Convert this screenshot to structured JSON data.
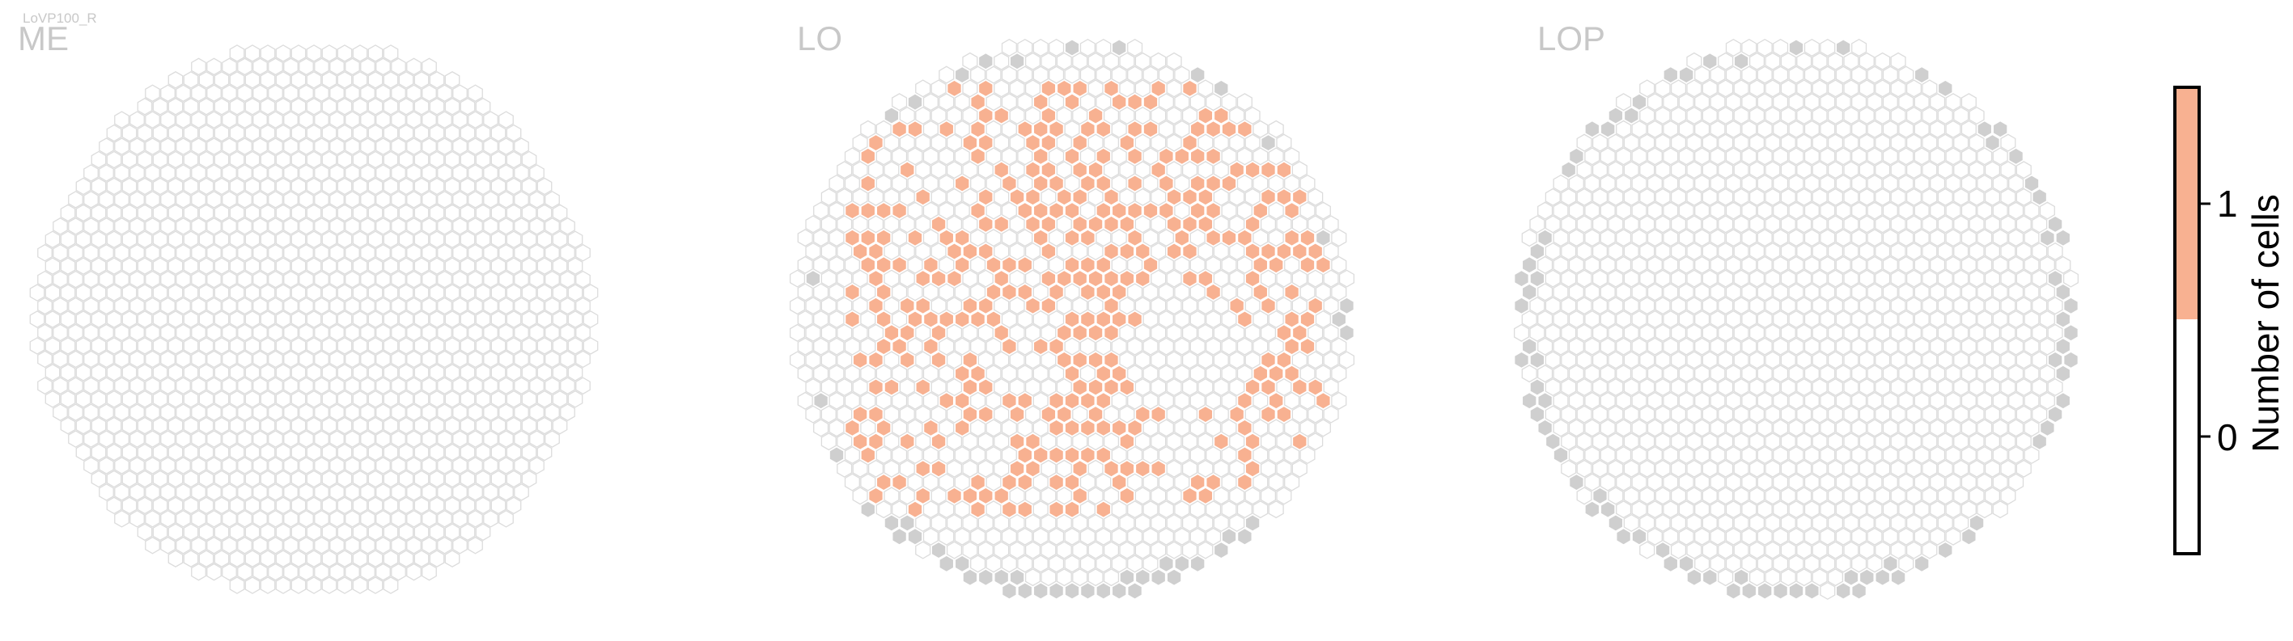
{
  "figure": {
    "id_label": "LoVP100_R"
  },
  "chart_data": [
    {
      "type": "heatmap",
      "subtype": "hexagonal-column-map",
      "title": "ME",
      "column_radius": 19,
      "columns_with_cells": 0,
      "has_gray_outside_columns": false
    },
    {
      "type": "heatmap",
      "subtype": "hexagonal-column-map",
      "title": "LO",
      "column_radius": 17,
      "columns_with_cells": 380,
      "innervated_fraction_estimate": 0.42,
      "has_gray_outside_columns": true
    },
    {
      "type": "heatmap",
      "subtype": "hexagonal-column-map",
      "title": "LOP",
      "column_radius": 17,
      "columns_with_cells": 0,
      "has_gray_outside_columns": true
    }
  ],
  "colorbar": {
    "label": "Number of cells",
    "ticks": [
      "1",
      "0"
    ],
    "tick_values": [
      1,
      0
    ],
    "range": [
      -0.5,
      1.5
    ],
    "bins": [
      {
        "value": 0,
        "color": "#ffffff"
      },
      {
        "value": 1,
        "color": "#f8b191"
      }
    ]
  },
  "colors": {
    "filled": "#f8b191",
    "empty_stroke": "#dcdcdc",
    "outside": "#cfcfcf",
    "title": "#c8c8c8"
  }
}
